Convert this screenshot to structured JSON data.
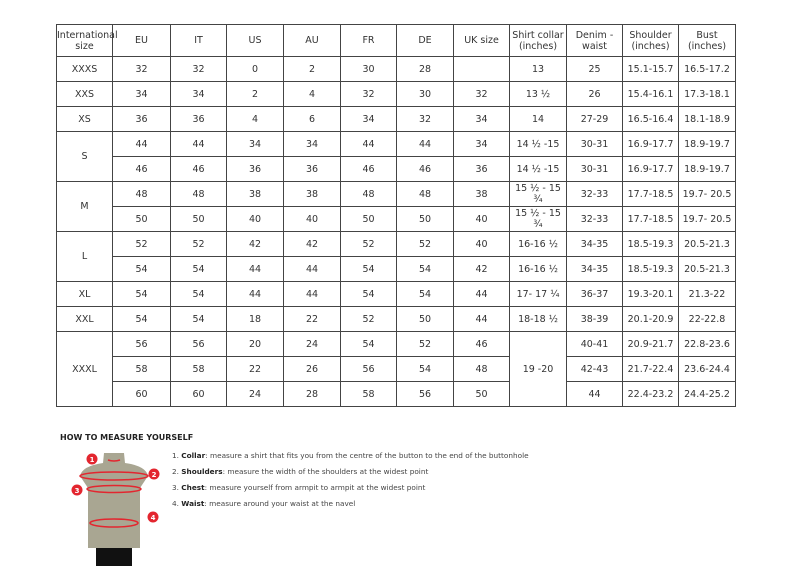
{
  "headers": [
    "International size",
    "EU",
    "IT",
    "US",
    "AU",
    "FR",
    "DE",
    "UK size",
    "Shirt collar (inches)",
    "Denim - waist",
    "Shoulder (inches)",
    "Bust (inches)"
  ],
  "groups": [
    {
      "size": "XXXS",
      "rows": [
        [
          "32",
          "32",
          "0",
          "2",
          "30",
          "28",
          "",
          "13",
          "25",
          "15.1-15.7",
          "16.5-17.2"
        ]
      ]
    },
    {
      "size": "XXS",
      "rows": [
        [
          "34",
          "34",
          "2",
          "4",
          "32",
          "30",
          "32",
          "13 ½",
          "26",
          "15.4-16.1",
          "17.3-18.1"
        ]
      ]
    },
    {
      "size": "XS",
      "rows": [
        [
          "36",
          "36",
          "4",
          "6",
          "34",
          "32",
          "34",
          "14",
          "27-29",
          "16.5-16.4",
          "18.1-18.9"
        ]
      ]
    },
    {
      "size": "S",
      "rows": [
        [
          "44",
          "44",
          "34",
          "34",
          "44",
          "44",
          "34",
          "14 ½ -15",
          "30-31",
          "16.9-17.7",
          "18.9-19.7"
        ],
        [
          "46",
          "46",
          "36",
          "36",
          "46",
          "46",
          "36",
          "14 ½ -15",
          "30-31",
          "16.9-17.7",
          "18.9-19.7"
        ]
      ]
    },
    {
      "size": "M",
      "rows": [
        [
          "48",
          "48",
          "38",
          "38",
          "48",
          "48",
          "38",
          "15 ½ - 15 ¾",
          "32-33",
          "17.7-18.5",
          "19.7- 20.5"
        ],
        [
          "50",
          "50",
          "40",
          "40",
          "50",
          "50",
          "40",
          "15 ½ - 15 ¾",
          "32-33",
          "17.7-18.5",
          "19.7- 20.5"
        ]
      ]
    },
    {
      "size": "L",
      "rows": [
        [
          "52",
          "52",
          "42",
          "42",
          "52",
          "52",
          "40",
          "16-16 ½",
          "34-35",
          "18.5-19.3",
          "20.5-21.3"
        ],
        [
          "54",
          "54",
          "44",
          "44",
          "54",
          "54",
          "42",
          "16-16 ½",
          "34-35",
          "18.5-19.3",
          "20.5-21.3"
        ]
      ]
    },
    {
      "size": "XL",
      "rows": [
        [
          "54",
          "54",
          "44",
          "44",
          "54",
          "54",
          "44",
          "17- 17 ¼",
          "36-37",
          "19.3-20.1",
          "21.3-22"
        ]
      ]
    },
    {
      "size": "XXL",
      "rows": [
        [
          "54",
          "54",
          "18",
          "22",
          "52",
          "50",
          "44",
          "18-18 ½",
          "38-39",
          "20.1-20.9",
          "22-22.8"
        ]
      ]
    },
    {
      "size": "XXXL",
      "shared_collar": "19 -20",
      "rows": [
        [
          "56",
          "56",
          "20",
          "24",
          "54",
          "52",
          "46",
          "",
          "40-41",
          "20.9-21.7",
          "22.8-23.6"
        ],
        [
          "58",
          "58",
          "22",
          "26",
          "56",
          "54",
          "48",
          "",
          "42-43",
          "21.7-22.4",
          "23.6-24.4"
        ],
        [
          "60",
          "60",
          "24",
          "28",
          "58",
          "56",
          "50",
          "",
          "44",
          "22.4-23.2",
          "24.4-25.2"
        ]
      ]
    }
  ],
  "howto": {
    "title": "HOW TO MEASURE YOURSELF",
    "steps": [
      {
        "num": "1.",
        "term": "Collar",
        "text": ": measure a shirt that fits you from the centre of the button to the end of the buttonhole"
      },
      {
        "num": "2.",
        "term": "Shoulders",
        "text": ": measure the width of the shoulders at the widest point"
      },
      {
        "num": "3.",
        "term": "Chest",
        "text": ": measure yourself from armpit to armpit at the widest point"
      },
      {
        "num": "4.",
        "term": "Waist",
        "text": ": measure around your waist at the navel"
      }
    ],
    "markers": [
      "1",
      "2",
      "3",
      "4"
    ]
  },
  "colors": {
    "marker": "#e3262f",
    "torso": "#a9a692",
    "shorts": "#111111"
  }
}
